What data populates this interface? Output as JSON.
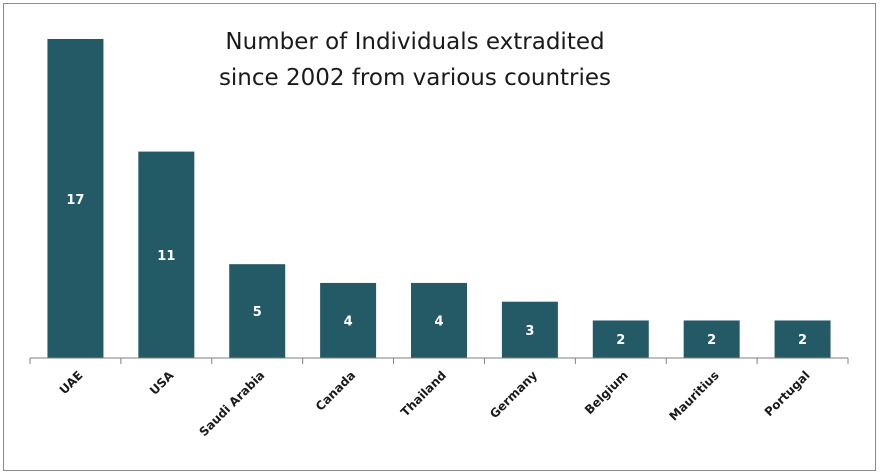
{
  "chart_data": {
    "type": "bar",
    "title_line1": "Number of Individuals extradited",
    "title_line2": "since 2002 from various countries",
    "categories": [
      "UAE",
      "USA",
      "Saudi Arabia",
      "Canada",
      "Thailand",
      "Germany",
      "Belgium",
      "Mauritius",
      "Portugal"
    ],
    "values": [
      17,
      11,
      5,
      4,
      4,
      3,
      2,
      2,
      2
    ],
    "data_labels": [
      "",
      "11",
      "5",
      "4",
      "4",
      "3",
      "2",
      "2",
      "2"
    ],
    "label_uae": "17",
    "xlabel": "",
    "ylabel": "",
    "ylim": [
      0,
      17
    ],
    "grid": false,
    "legend": "none",
    "bar_color": "#245a66"
  }
}
